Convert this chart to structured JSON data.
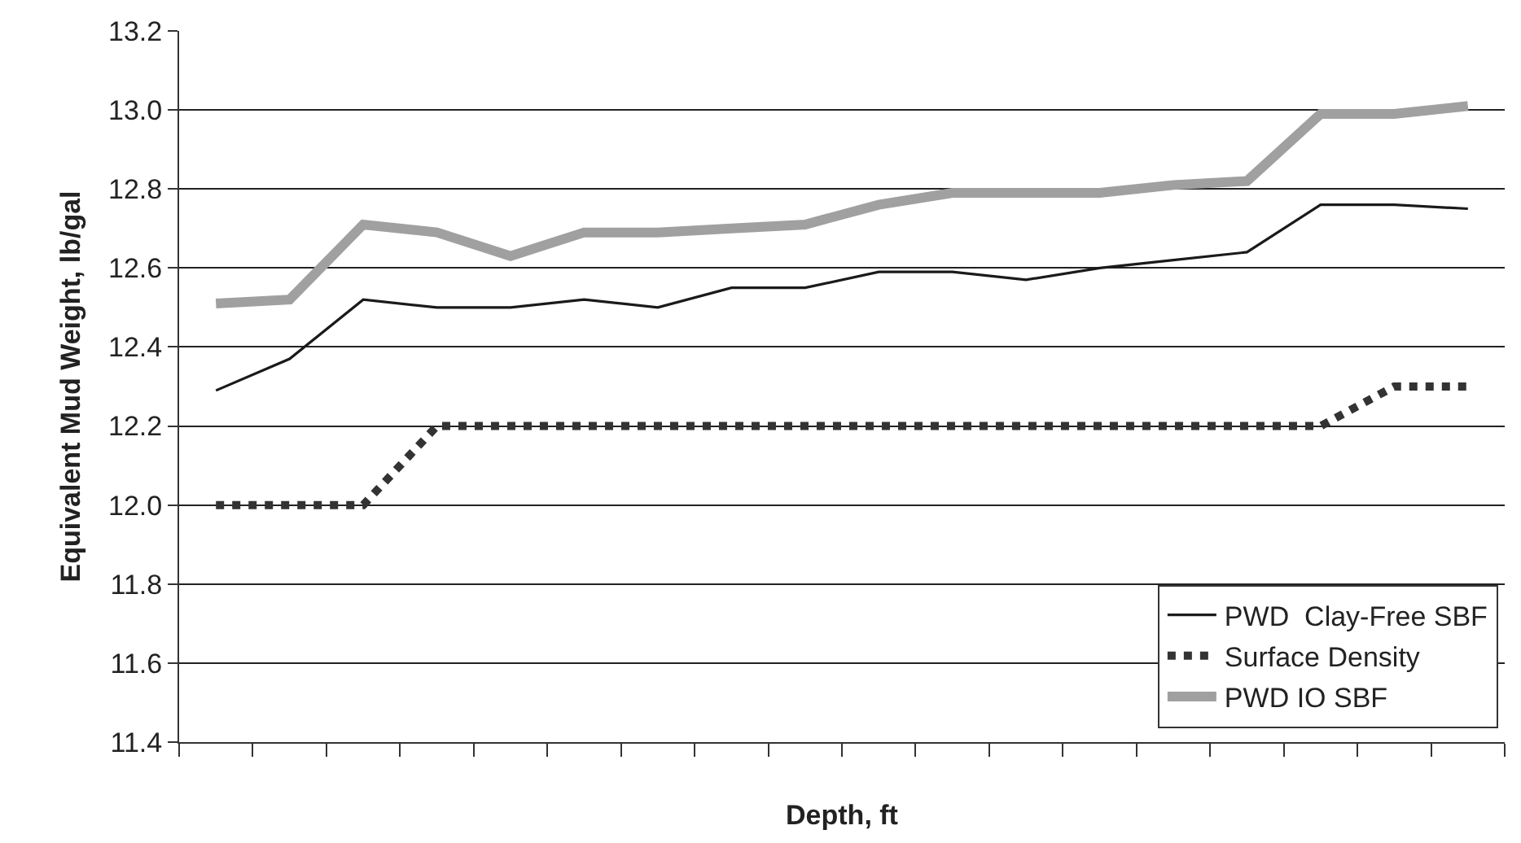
{
  "chart_data": {
    "type": "line",
    "xlabel": "Depth, ft",
    "ylabel": "Equivalent Mud Weight, lb/gal",
    "categories": [
      null,
      null,
      null,
      null,
      null,
      null,
      null,
      null,
      null,
      null,
      null,
      null,
      null,
      null,
      null,
      null,
      null,
      null
    ],
    "series": [
      {
        "name": "PWD  Clay-Free SBF",
        "color": "#1a1a1a",
        "line_style": "solid",
        "values": [
          12.29,
          12.37,
          12.52,
          12.5,
          12.5,
          12.52,
          12.5,
          12.55,
          12.55,
          12.59,
          12.59,
          12.57,
          12.6,
          12.62,
          12.64,
          12.76,
          12.76,
          12.75
        ]
      },
      {
        "name": "Surface Density",
        "color": "#333333",
        "line_style": "dotted",
        "values": [
          12.0,
          12.0,
          12.0,
          12.2,
          12.2,
          12.2,
          12.2,
          12.2,
          12.2,
          12.2,
          12.2,
          12.2,
          12.2,
          12.2,
          12.2,
          12.2,
          12.3,
          12.3
        ]
      },
      {
        "name": "PWD IO SBF",
        "color": "#a0a0a0",
        "line_style": "solid",
        "values": [
          12.51,
          12.52,
          12.71,
          12.69,
          12.63,
          12.69,
          12.69,
          12.7,
          12.71,
          12.76,
          12.79,
          12.79,
          12.79,
          12.81,
          12.82,
          12.99,
          12.99,
          13.01
        ]
      }
    ],
    "ylim": [
      11.4,
      13.2
    ],
    "yticks": [
      {
        "value": 11.4,
        "label": "11.4"
      },
      {
        "value": 11.6,
        "label": "11.6"
      },
      {
        "value": 11.8,
        "label": "11.8"
      },
      {
        "value": 12.0,
        "label": "12.0"
      },
      {
        "value": 12.2,
        "label": "12.2"
      },
      {
        "value": 12.4,
        "label": "12.4"
      },
      {
        "value": 12.6,
        "label": "12.6"
      },
      {
        "value": 12.8,
        "label": "12.8"
      },
      {
        "value": 13.0,
        "label": "13.0"
      },
      {
        "value": 13.2,
        "label": "13.2"
      }
    ],
    "grid": "y",
    "legend": "bottom right",
    "marker": "none",
    "tick_labels": "y"
  }
}
